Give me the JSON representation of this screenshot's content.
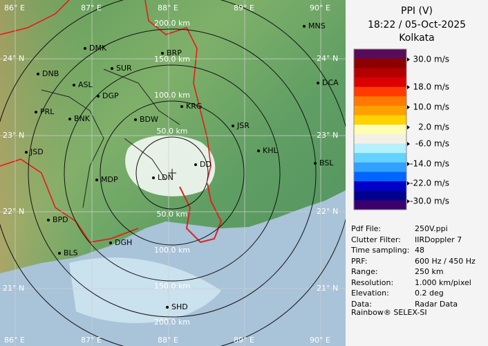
{
  "header": {
    "product": "PPI (V)",
    "time": "18:22 / 05-Oct-2025",
    "station": "Kolkata"
  },
  "map": {
    "lon_labels": [
      "86° E",
      "87° E",
      "88° E",
      "89° E",
      "90° E"
    ],
    "lat_labels": [
      "24° N",
      "23° N",
      "22° N",
      "21° N"
    ],
    "range_labels": [
      "50.0 km",
      "100.0 km",
      "150.0 km",
      "200.0 km"
    ],
    "cities": [
      "MNS",
      "DMK",
      "BRP",
      "SUR",
      "DNB",
      "ASL",
      "DGP",
      "DCA",
      "KRG",
      "PRL",
      "BNK",
      "BDW",
      "JSR",
      "KHL",
      "JSD",
      "BSL",
      "DD",
      "MDP",
      "LDN",
      "BPD",
      "DGH",
      "BLS",
      "SHD"
    ]
  },
  "colorbar": {
    "colors": [
      "#5a0a5a",
      "#8c0000",
      "#b40000",
      "#dc0000",
      "#ff3c00",
      "#ff7800",
      "#ffa000",
      "#ffd200",
      "#ffffb4",
      "#f5f0e6",
      "#b4f0ff",
      "#64d2ff",
      "#32a0ff",
      "#0064ff",
      "#0000c8",
      "#00008c",
      "#3c006e"
    ],
    "labels": [
      "30.0 m/s",
      "18.0 m/s",
      "10.0 m/s",
      "2.0 m/s",
      "-6.0 m/s",
      "-14.0 m/s",
      "-22.0 m/s",
      "-30.0 m/s"
    ]
  },
  "info": {
    "rows": [
      [
        "Pdf File:",
        "250V.ppi"
      ],
      [
        "Clutter Filter:",
        "IIRDoppler 7"
      ],
      [
        "Time sampling:",
        "48"
      ],
      [
        "PRF:",
        "600 Hz / 450 Hz"
      ],
      [
        "Range:",
        "250 km"
      ],
      [
        "Resolution:",
        "1.000 km/pixel"
      ],
      [
        "Elevation:",
        "0.2 deg"
      ],
      [
        "Data:",
        "Radar Data"
      ]
    ],
    "footer": "Rainbow® SELEX-SI"
  }
}
